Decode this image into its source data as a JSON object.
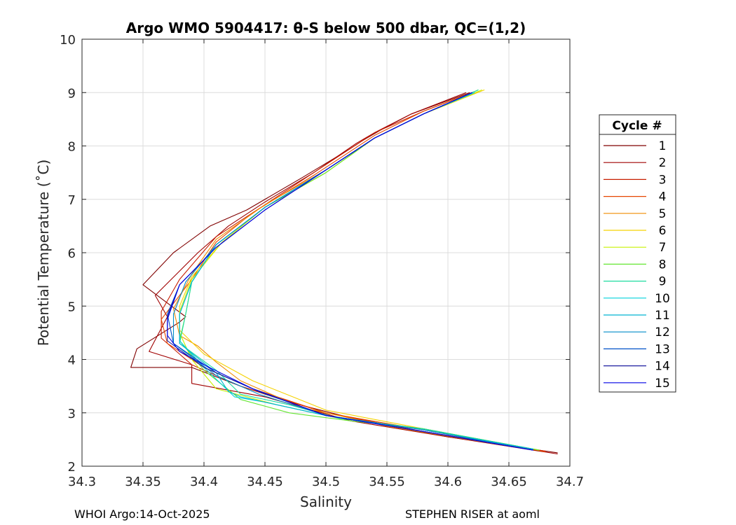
{
  "chart_data": {
    "type": "line",
    "title": "Argo WMO 5904417: θ-S below 500 dbar,  QC=(1,2)",
    "xlabel": "Salinity",
    "ylabel": "Potential Temperature (˚C)",
    "xlim": [
      34.3,
      34.7
    ],
    "ylim": [
      2,
      10
    ],
    "xticks": [
      "34.3",
      "34.35",
      "34.4",
      "34.45",
      "34.5",
      "34.55",
      "34.6",
      "34.65",
      "34.7"
    ],
    "yticks": [
      "2",
      "3",
      "4",
      "5",
      "6",
      "7",
      "8",
      "9",
      "10"
    ],
    "grid": true,
    "legend": {
      "title": "Cycle #",
      "position": "right",
      "entries": [
        "1",
        "2",
        "3",
        "4",
        "5",
        "6",
        "7",
        "8",
        "9",
        "10",
        "11",
        "12",
        "13",
        "14",
        "15"
      ],
      "colors": [
        "#800000",
        "#a00000",
        "#c81e00",
        "#e64600",
        "#f08c00",
        "#f5d200",
        "#c8f000",
        "#64e632",
        "#1edca0",
        "#00d2dc",
        "#00b4d2",
        "#008cc8",
        "#0050c8",
        "#1e1ea0",
        "#0000e6"
      ]
    },
    "series": [
      {
        "name": "1",
        "points": [
          [
            34.618,
            9.0
          ],
          [
            34.57,
            8.6
          ],
          [
            34.545,
            8.3
          ],
          [
            34.53,
            8.1
          ],
          [
            34.52,
            7.95
          ],
          [
            34.48,
            7.4
          ],
          [
            34.435,
            6.8
          ],
          [
            34.405,
            6.5
          ],
          [
            34.375,
            6.0
          ],
          [
            34.35,
            5.4
          ],
          [
            34.385,
            4.8
          ],
          [
            34.38,
            4.7
          ],
          [
            34.345,
            4.2
          ],
          [
            34.34,
            3.85
          ],
          [
            34.39,
            3.85
          ],
          [
            34.43,
            3.5
          ],
          [
            34.47,
            3.2
          ],
          [
            34.53,
            2.85
          ],
          [
            34.6,
            2.55
          ],
          [
            34.69,
            2.25
          ]
        ]
      },
      {
        "name": "2",
        "points": [
          [
            34.615,
            9.0
          ],
          [
            34.57,
            8.6
          ],
          [
            34.54,
            8.25
          ],
          [
            34.525,
            8.05
          ],
          [
            34.49,
            7.5
          ],
          [
            34.45,
            6.95
          ],
          [
            34.42,
            6.5
          ],
          [
            34.395,
            6.0
          ],
          [
            34.36,
            5.2
          ],
          [
            34.37,
            4.8
          ],
          [
            34.355,
            4.15
          ],
          [
            34.39,
            3.9
          ],
          [
            34.39,
            3.55
          ],
          [
            34.45,
            3.3
          ],
          [
            34.52,
            2.85
          ],
          [
            34.6,
            2.55
          ],
          [
            34.69,
            2.23
          ]
        ]
      },
      {
        "name": "3",
        "points": [
          [
            34.62,
            9.0
          ],
          [
            34.58,
            8.65
          ],
          [
            34.54,
            8.25
          ],
          [
            34.49,
            7.5
          ],
          [
            34.45,
            6.9
          ],
          [
            34.41,
            6.3
          ],
          [
            34.38,
            5.5
          ],
          [
            34.365,
            4.9
          ],
          [
            34.365,
            4.4
          ],
          [
            34.39,
            3.9
          ],
          [
            34.43,
            3.5
          ],
          [
            34.5,
            3.0
          ],
          [
            34.58,
            2.65
          ],
          [
            34.68,
            2.28
          ]
        ]
      },
      {
        "name": "4",
        "points": [
          [
            34.622,
            9.02
          ],
          [
            34.58,
            8.65
          ],
          [
            34.54,
            8.2
          ],
          [
            34.49,
            7.45
          ],
          [
            34.44,
            6.75
          ],
          [
            34.41,
            6.2
          ],
          [
            34.39,
            5.5
          ],
          [
            34.365,
            4.75
          ],
          [
            34.37,
            4.3
          ],
          [
            34.4,
            3.85
          ],
          [
            34.44,
            3.45
          ],
          [
            34.5,
            3.0
          ],
          [
            34.58,
            2.68
          ],
          [
            34.68,
            2.27
          ]
        ]
      },
      {
        "name": "5",
        "points": [
          [
            34.625,
            9.02
          ],
          [
            34.58,
            8.6
          ],
          [
            34.54,
            8.15
          ],
          [
            34.5,
            7.55
          ],
          [
            34.45,
            6.9
          ],
          [
            34.41,
            6.25
          ],
          [
            34.39,
            5.6
          ],
          [
            34.375,
            4.95
          ],
          [
            34.38,
            4.45
          ],
          [
            34.395,
            4.25
          ],
          [
            34.41,
            3.95
          ],
          [
            34.43,
            3.6
          ],
          [
            34.48,
            3.1
          ],
          [
            34.55,
            2.75
          ],
          [
            34.67,
            2.3
          ]
        ]
      },
      {
        "name": "6",
        "points": [
          [
            34.63,
            9.05
          ],
          [
            34.58,
            8.6
          ],
          [
            34.54,
            8.15
          ],
          [
            34.5,
            7.5
          ],
          [
            34.45,
            6.85
          ],
          [
            34.415,
            6.2
          ],
          [
            34.39,
            5.55
          ],
          [
            34.38,
            5.0
          ],
          [
            34.38,
            4.55
          ],
          [
            34.4,
            4.1
          ],
          [
            34.44,
            3.6
          ],
          [
            34.5,
            3.05
          ],
          [
            34.58,
            2.7
          ],
          [
            34.675,
            2.3
          ]
        ]
      },
      {
        "name": "7",
        "points": [
          [
            34.628,
            9.05
          ],
          [
            34.58,
            8.6
          ],
          [
            34.54,
            8.15
          ],
          [
            34.5,
            7.5
          ],
          [
            34.45,
            6.85
          ],
          [
            34.415,
            6.2
          ],
          [
            34.39,
            5.5
          ],
          [
            34.38,
            4.9
          ],
          [
            34.38,
            4.5
          ],
          [
            34.39,
            4.0
          ],
          [
            34.41,
            3.45
          ],
          [
            34.46,
            3.15
          ],
          [
            34.51,
            2.9
          ],
          [
            34.58,
            2.7
          ],
          [
            34.675,
            2.3
          ]
        ]
      },
      {
        "name": "8",
        "points": [
          [
            34.625,
            9.05
          ],
          [
            34.58,
            8.6
          ],
          [
            34.54,
            8.15
          ],
          [
            34.5,
            7.5
          ],
          [
            34.45,
            6.85
          ],
          [
            34.41,
            6.15
          ],
          [
            34.39,
            5.45
          ],
          [
            34.385,
            4.85
          ],
          [
            34.38,
            4.35
          ],
          [
            34.4,
            3.8
          ],
          [
            34.43,
            3.25
          ],
          [
            34.47,
            3.0
          ],
          [
            34.52,
            2.85
          ],
          [
            34.58,
            2.7
          ],
          [
            34.675,
            2.3
          ]
        ]
      },
      {
        "name": "9",
        "points": [
          [
            34.625,
            9.05
          ],
          [
            34.58,
            8.6
          ],
          [
            34.54,
            8.15
          ],
          [
            34.5,
            7.55
          ],
          [
            34.45,
            6.85
          ],
          [
            34.41,
            6.15
          ],
          [
            34.39,
            5.45
          ],
          [
            34.385,
            4.85
          ],
          [
            34.38,
            4.3
          ],
          [
            34.41,
            3.8
          ],
          [
            34.43,
            3.35
          ],
          [
            34.47,
            3.15
          ],
          [
            34.51,
            2.9
          ],
          [
            34.58,
            2.7
          ],
          [
            34.67,
            2.32
          ]
        ]
      },
      {
        "name": "10",
        "points": [
          [
            34.622,
            9.0
          ],
          [
            34.58,
            8.6
          ],
          [
            34.54,
            8.15
          ],
          [
            34.5,
            7.55
          ],
          [
            34.45,
            6.85
          ],
          [
            34.41,
            6.15
          ],
          [
            34.39,
            5.45
          ],
          [
            34.38,
            4.85
          ],
          [
            34.38,
            4.35
          ],
          [
            34.4,
            3.85
          ],
          [
            34.425,
            3.3
          ],
          [
            34.45,
            3.2
          ],
          [
            34.5,
            2.95
          ],
          [
            34.58,
            2.68
          ],
          [
            34.67,
            2.32
          ]
        ]
      },
      {
        "name": "11",
        "points": [
          [
            34.62,
            9.0
          ],
          [
            34.58,
            8.6
          ],
          [
            34.54,
            8.15
          ],
          [
            34.5,
            7.55
          ],
          [
            34.45,
            6.85
          ],
          [
            34.41,
            6.15
          ],
          [
            34.39,
            5.45
          ],
          [
            34.38,
            4.85
          ],
          [
            34.38,
            4.3
          ],
          [
            34.41,
            3.75
          ],
          [
            34.42,
            3.4
          ],
          [
            34.43,
            3.3
          ],
          [
            34.5,
            2.95
          ],
          [
            34.58,
            2.68
          ],
          [
            34.67,
            2.32
          ]
        ]
      },
      {
        "name": "12",
        "points": [
          [
            34.62,
            9.0
          ],
          [
            34.58,
            8.6
          ],
          [
            34.54,
            8.15
          ],
          [
            34.5,
            7.55
          ],
          [
            34.45,
            6.85
          ],
          [
            34.41,
            6.15
          ],
          [
            34.385,
            5.45
          ],
          [
            34.375,
            4.85
          ],
          [
            34.375,
            4.3
          ],
          [
            34.41,
            3.7
          ],
          [
            34.445,
            3.35
          ],
          [
            34.5,
            2.95
          ],
          [
            34.58,
            2.68
          ],
          [
            34.67,
            2.3
          ]
        ]
      },
      {
        "name": "13",
        "points": [
          [
            34.62,
            9.0
          ],
          [
            34.58,
            8.6
          ],
          [
            34.54,
            8.15
          ],
          [
            34.5,
            7.55
          ],
          [
            34.45,
            6.8
          ],
          [
            34.41,
            6.1
          ],
          [
            34.38,
            5.4
          ],
          [
            34.37,
            4.85
          ],
          [
            34.375,
            4.3
          ],
          [
            34.41,
            3.75
          ],
          [
            34.445,
            3.4
          ],
          [
            34.5,
            2.95
          ],
          [
            34.58,
            2.65
          ],
          [
            34.67,
            2.3
          ]
        ]
      },
      {
        "name": "14",
        "points": [
          [
            34.62,
            9.0
          ],
          [
            34.58,
            8.6
          ],
          [
            34.54,
            8.15
          ],
          [
            34.5,
            7.55
          ],
          [
            34.45,
            6.8
          ],
          [
            34.41,
            6.1
          ],
          [
            34.38,
            5.4
          ],
          [
            34.37,
            4.8
          ],
          [
            34.37,
            4.35
          ],
          [
            34.4,
            3.85
          ],
          [
            34.44,
            3.45
          ],
          [
            34.5,
            2.95
          ],
          [
            34.58,
            2.65
          ],
          [
            34.67,
            2.3
          ]
        ]
      },
      {
        "name": "15",
        "points": [
          [
            34.62,
            9.0
          ],
          [
            34.58,
            8.6
          ],
          [
            34.54,
            8.15
          ],
          [
            34.5,
            7.55
          ],
          [
            34.45,
            6.8
          ],
          [
            34.41,
            6.1
          ],
          [
            34.38,
            5.4
          ],
          [
            34.37,
            4.75
          ],
          [
            34.37,
            4.45
          ],
          [
            34.38,
            4.15
          ],
          [
            34.4,
            3.9
          ],
          [
            34.44,
            3.45
          ],
          [
            34.5,
            2.95
          ],
          [
            34.58,
            2.65
          ],
          [
            34.67,
            2.3
          ]
        ]
      }
    ]
  },
  "footer": {
    "left": "WHOI Argo:14-Oct-2025",
    "right": "STEPHEN RISER at aoml"
  }
}
